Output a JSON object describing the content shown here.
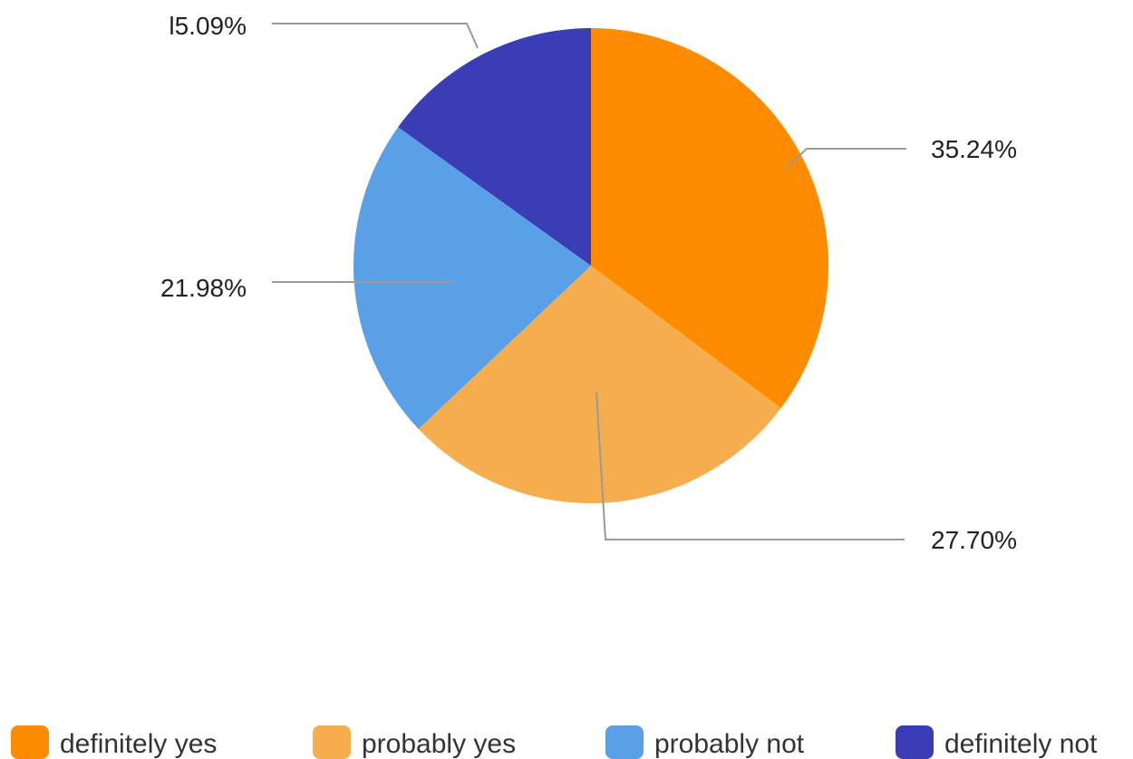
{
  "chart_data": {
    "type": "pie",
    "title": "",
    "slices": [
      {
        "label": "definitely yes",
        "value": 35.24,
        "value_label": "35.24%",
        "color": "#FF8C00"
      },
      {
        "label": "probably yes",
        "value": 27.7,
        "value_label": "27.70%",
        "color": "#F6AD4E"
      },
      {
        "label": "probably not",
        "value": 21.98,
        "value_label": "21.98%",
        "color": "#5AA0E6"
      },
      {
        "label": "definitely not",
        "value": 15.09,
        "value_label": "l5.09%",
        "color": "#3A3DB5"
      }
    ],
    "start_angle_deg": 0,
    "direction": "clockwise",
    "legend_position": "bottom"
  }
}
